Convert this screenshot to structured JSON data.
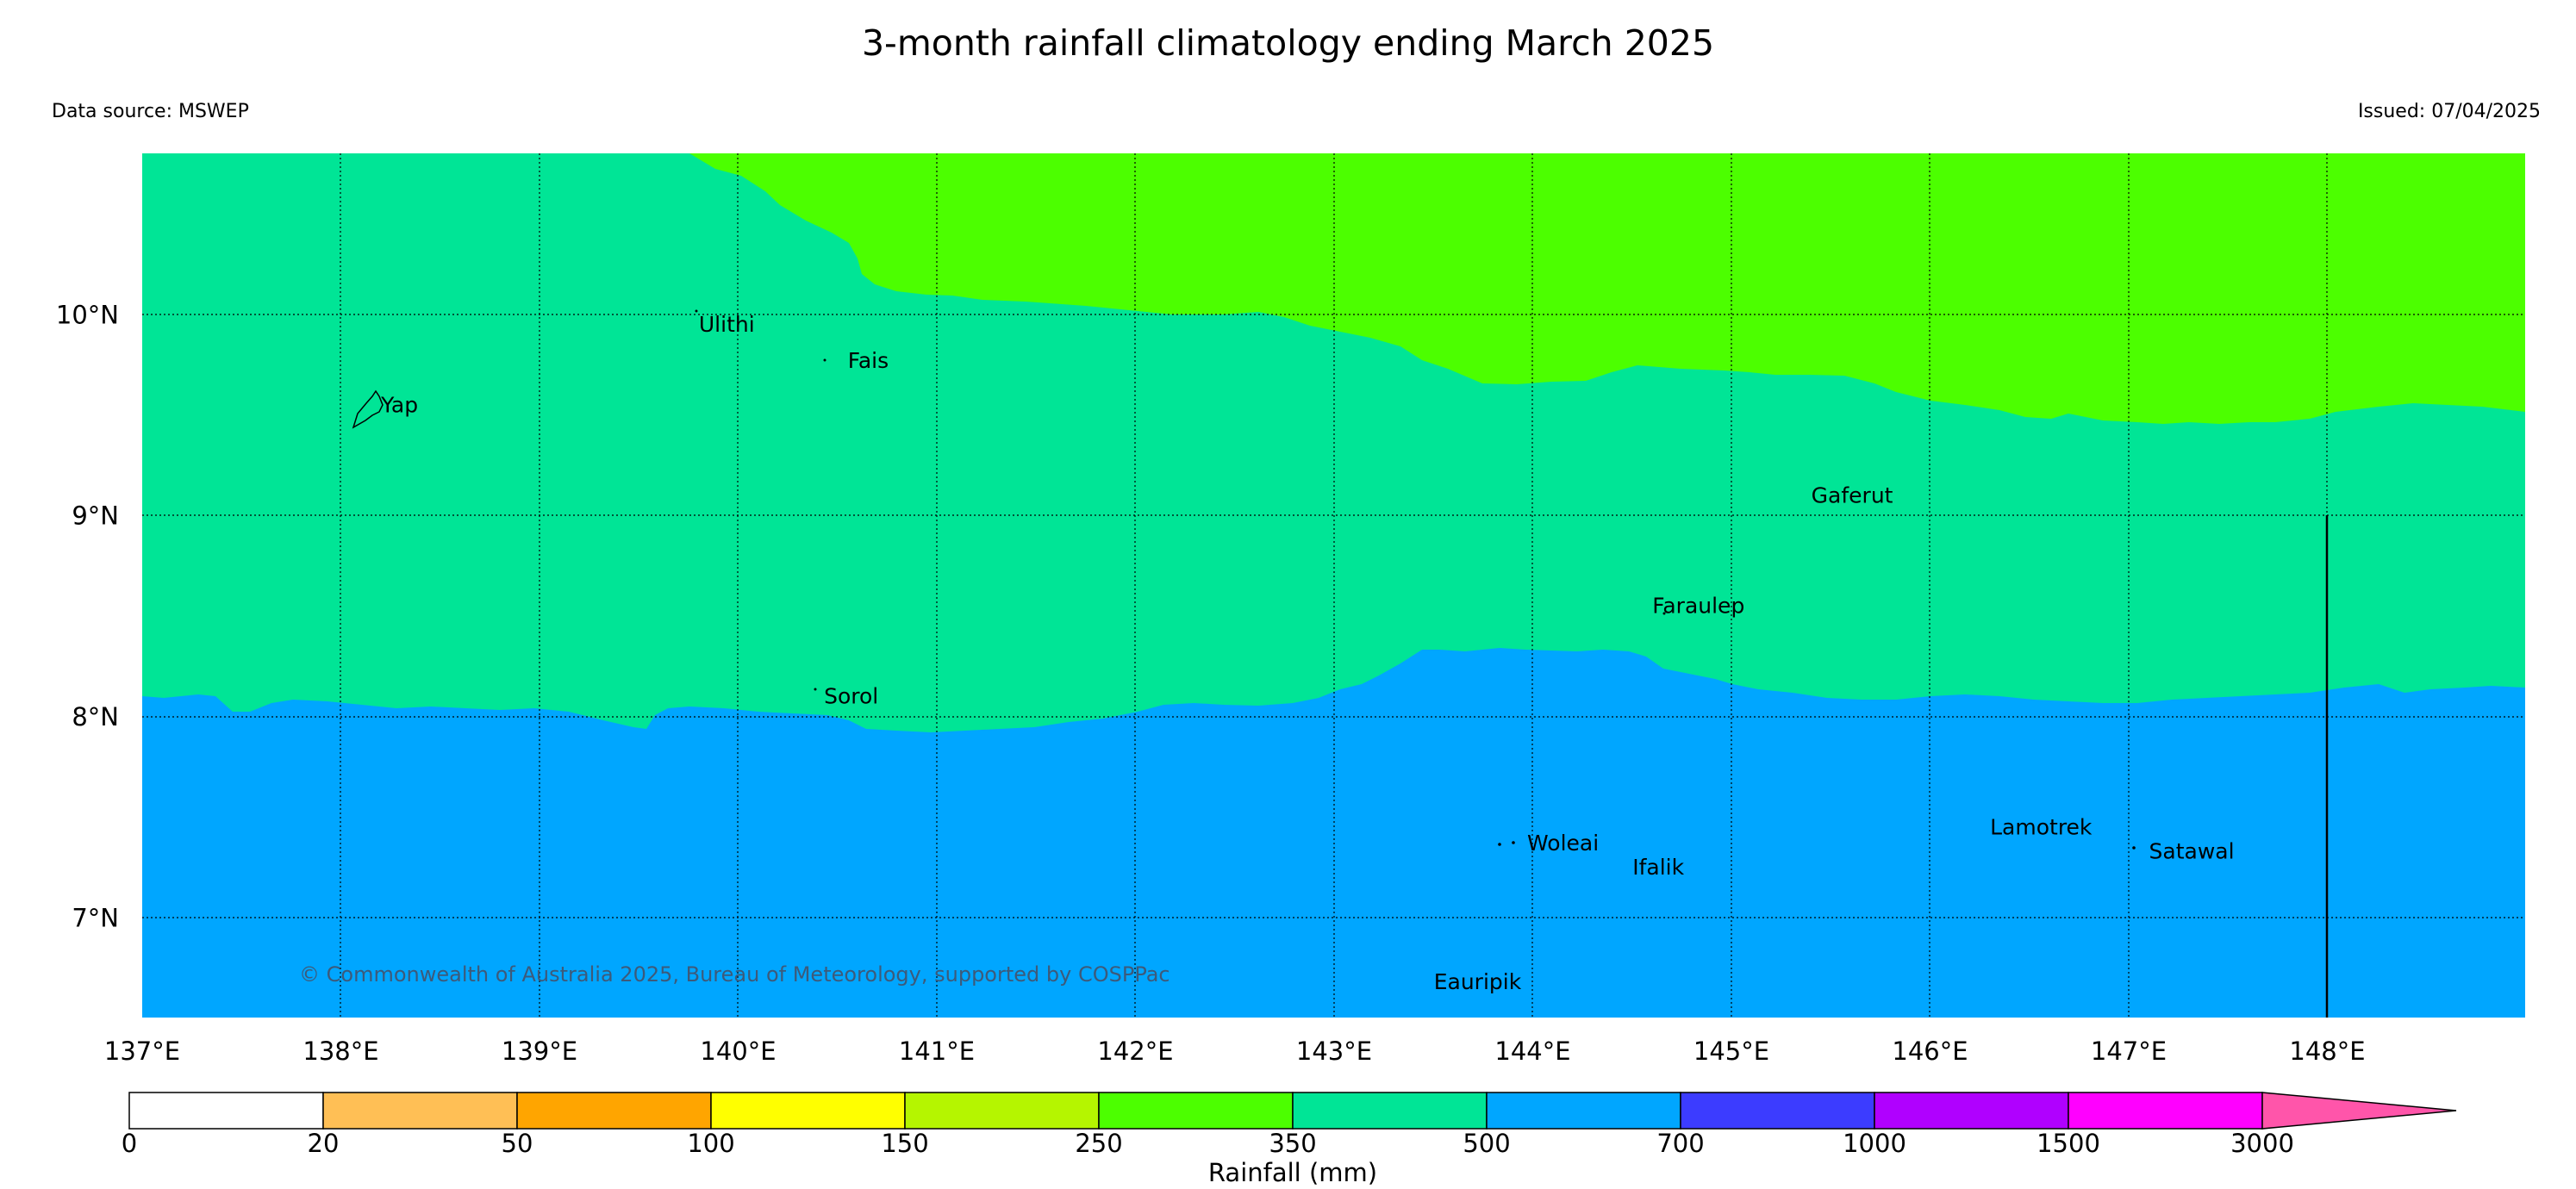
{
  "title": "3-month rainfall climatology ending March 2025",
  "data_source": "Data source: MSWEP",
  "issued": "Issued: 07/04/2025",
  "copyright": "© Commonwealth of Australia 2025, Bureau of Meteorology, supported by COSPPac",
  "map": {
    "lon_range": [
      137,
      149
    ],
    "lat_range": [
      6.5,
      10.8
    ],
    "lon_ticks": [
      "137°E",
      "138°E",
      "139°E",
      "140°E",
      "141°E",
      "142°E",
      "143°E",
      "144°E",
      "145°E",
      "146°E",
      "147°E",
      "148°E"
    ],
    "lat_ticks": [
      "10°N",
      "9°N",
      "8°N",
      "7°N"
    ],
    "gridlines": true,
    "places": [
      {
        "name": "Yap",
        "lon": 138.15,
        "lat": 9.55
      },
      {
        "name": "Ulithi",
        "lon": 139.75,
        "lat": 9.95
      },
      {
        "name": "Fais",
        "lon": 140.5,
        "lat": 9.77
      },
      {
        "name": "Gaferut",
        "lon": 145.35,
        "lat": 9.1
      },
      {
        "name": "Faraulep",
        "lon": 144.55,
        "lat": 8.55
      },
      {
        "name": "Sorol",
        "lon": 140.38,
        "lat": 8.1
      },
      {
        "name": "Woleai",
        "lon": 143.92,
        "lat": 7.37
      },
      {
        "name": "Ifalik",
        "lon": 144.45,
        "lat": 7.25
      },
      {
        "name": "Lamotrek",
        "lon": 146.25,
        "lat": 7.45
      },
      {
        "name": "Satawal",
        "lon": 147.05,
        "lat": 7.33
      },
      {
        "name": "Eauripik",
        "lon": 143.45,
        "lat": 6.68
      }
    ],
    "zone_colors": {
      "low": "#00a6ff",
      "mid": "#00e596",
      "high": "#4cff00"
    }
  },
  "colorbar": {
    "title": "Rainfall (mm)",
    "labels": [
      "0",
      "20",
      "50",
      "100",
      "150",
      "250",
      "350",
      "500",
      "700",
      "1000",
      "1500",
      "3000"
    ],
    "colors": [
      "#ffffff",
      "#ffbf55",
      "#ffa500",
      "#ffff00",
      "#b5f500",
      "#4cff00",
      "#00e596",
      "#00a6ff",
      "#3c3cff",
      "#b000ff",
      "#ff00ff"
    ],
    "extend_color": "#ff55aa"
  }
}
